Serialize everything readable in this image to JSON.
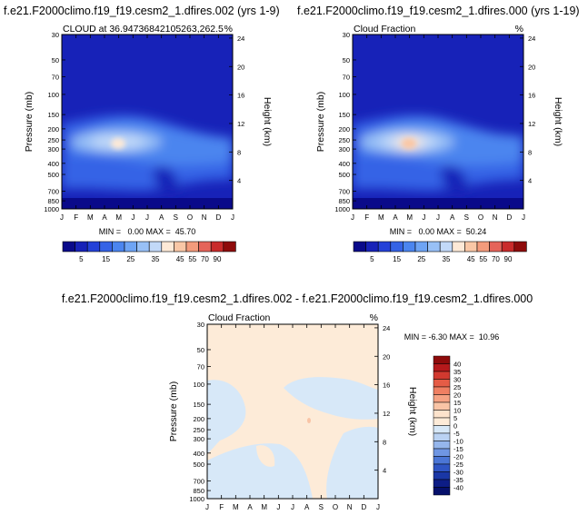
{
  "chart_data": [
    {
      "type": "heatmap",
      "title": "f.e21.F2000climo.f19_f19.cesm2_1.dfires.002 (yrs 1-9)",
      "left_label": "CLOUD at 36.94736842105263,262.5",
      "right_label": "%",
      "ylabel": "Pressure (mb)",
      "y2label": "Height (km)",
      "x_ticks": [
        "J",
        "F",
        "M",
        "A",
        "M",
        "J",
        "J",
        "A",
        "S",
        "O",
        "N",
        "D",
        "J"
      ],
      "pressure_ticks": [
        30,
        50,
        70,
        100,
        150,
        200,
        250,
        300,
        400,
        500,
        700,
        850,
        1000
      ],
      "height_ticks": [
        24,
        20,
        16,
        12,
        8,
        4
      ],
      "min_max_text": "MIN =   0.00 MAX =  45.70",
      "min": 0.0,
      "max": 45.7,
      "peak": {
        "month": 4,
        "pressure": 250,
        "value": 45.7
      },
      "colorbar_labels": [
        "5",
        "15",
        "25",
        "35",
        "45",
        "55",
        "70",
        "90"
      ]
    },
    {
      "type": "heatmap",
      "title": "f.e21.F2000climo.f19_f19.cesm2_1.dfires.000 (yrs 1-19)",
      "left_label": "Cloud Fraction",
      "right_label": "%",
      "ylabel": "Pressure (mb)",
      "y2label": "Height (km)",
      "x_ticks": [
        "J",
        "F",
        "M",
        "A",
        "M",
        "J",
        "J",
        "A",
        "S",
        "O",
        "N",
        "D",
        "J"
      ],
      "pressure_ticks": [
        30,
        50,
        70,
        100,
        150,
        200,
        250,
        300,
        400,
        500,
        700,
        850,
        1000
      ],
      "height_ticks": [
        24,
        20,
        16,
        12,
        8,
        4
      ],
      "min_max_text": "MIN =   0.00 MAX =  50.24",
      "min": 0.0,
      "max": 50.24,
      "peak": {
        "month": 4,
        "pressure": 250,
        "value": 50.24
      },
      "colorbar_labels": [
        "5",
        "15",
        "25",
        "35",
        "45",
        "55",
        "70",
        "90"
      ]
    },
    {
      "type": "heatmap",
      "title": "f.e21.F2000climo.f19_f19.cesm2_1.dfires.002 - f.e21.F2000climo.f19_f19.cesm2_1.dfires.000",
      "left_label": "Cloud Fraction",
      "right_label": "%",
      "ylabel": "Pressure (mb)",
      "y2label": "Height (km)",
      "x_ticks": [
        "J",
        "F",
        "M",
        "A",
        "M",
        "J",
        "J",
        "A",
        "S",
        "O",
        "N",
        "D",
        "J"
      ],
      "pressure_ticks": [
        30,
        50,
        70,
        100,
        150,
        200,
        250,
        300,
        400,
        500,
        700,
        850,
        1000
      ],
      "height_ticks": [
        24,
        20,
        16,
        12,
        8,
        4
      ],
      "min_max_text": "MIN = -6.30 MAX =  10.96",
      "min": -6.3,
      "max": 10.96,
      "colorbar_labels": [
        "40",
        "35",
        "30",
        "25",
        "20",
        "15",
        "10",
        "5",
        "0",
        "-5",
        "-10",
        "-15",
        "-20",
        "-25",
        "-30",
        "-35",
        "-40"
      ]
    }
  ],
  "colors": {
    "abs_scale": [
      "#0a0a8a",
      "#1722b8",
      "#2441d8",
      "#3563e6",
      "#4b85ef",
      "#6ea4f4",
      "#98c0f6",
      "#c2d9f8",
      "#fde9d7",
      "#f9c7a6",
      "#f39b7c",
      "#e5645a",
      "#c92b2b",
      "#8e0b0b"
    ],
    "diff_scale": [
      "#8e0b0b",
      "#b5191b",
      "#d2392f",
      "#e55c46",
      "#ef7f62",
      "#f5a283",
      "#f9c4a6",
      "#fde3cc",
      "#fdebd8",
      "#d7e8f8",
      "#bad2f3",
      "#95b6ec",
      "#6f96e3",
      "#4b76d6",
      "#2f55c4",
      "#1a37a6",
      "#0d1d86",
      "#06106b"
    ]
  }
}
